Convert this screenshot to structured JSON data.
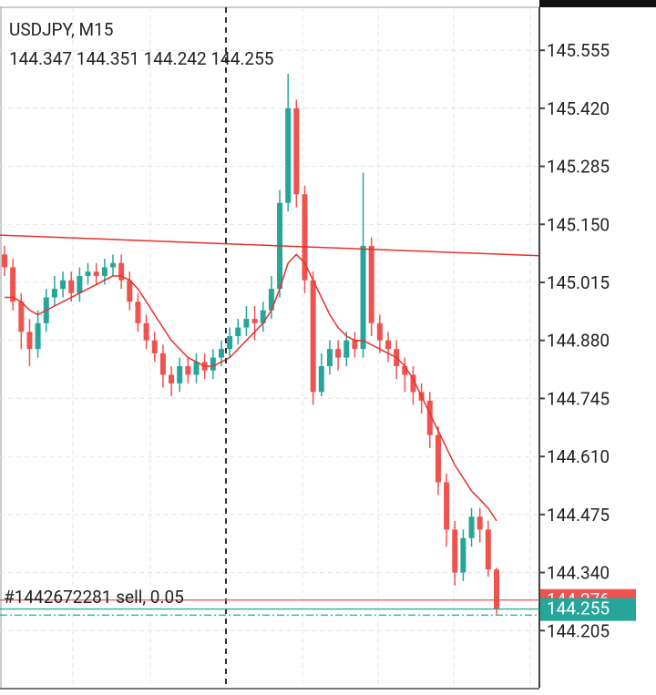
{
  "chart_data": {
    "type": "candlestick",
    "title": "USDJPY, M15",
    "subtitle": "144.347 144.351 144.242 144.255",
    "ylim": [
      144.072,
      145.655
    ],
    "yticks": [
      {
        "value": 145.555,
        "label": "145.555"
      },
      {
        "value": 145.42,
        "label": "145.420"
      },
      {
        "value": 145.285,
        "label": "145.285"
      },
      {
        "value": 145.15,
        "label": "145.150"
      },
      {
        "value": 145.015,
        "label": "145.015"
      },
      {
        "value": 144.88,
        "label": "144.880"
      },
      {
        "value": 144.745,
        "label": "144.745"
      },
      {
        "value": 144.61,
        "label": "144.610"
      },
      {
        "value": 144.475,
        "label": "144.475"
      },
      {
        "value": 144.34,
        "label": "144.340"
      },
      {
        "value": 144.205,
        "label": "144.205"
      }
    ],
    "up_color": "#26a69a",
    "down_color": "#ef5350",
    "open": [
      145.08,
      145.05,
      144.97,
      144.9,
      144.86,
      144.92,
      144.98,
      145.0,
      145.02,
      144.99,
      145.03,
      145.04,
      145.03,
      145.05,
      145.06,
      145.02,
      144.97,
      144.92,
      144.88,
      144.85,
      144.8,
      144.78,
      144.82,
      144.8,
      144.83,
      144.81,
      144.84,
      144.86,
      144.89,
      144.91,
      144.93,
      144.92,
      144.95,
      145.0,
      145.2,
      145.42,
      145.22,
      145.02,
      144.76,
      144.82,
      144.86,
      144.84,
      144.88,
      144.86,
      145.1,
      144.92,
      144.88,
      144.86,
      144.82,
      144.8,
      144.76,
      144.74,
      144.66,
      144.55,
      144.44,
      144.34,
      144.42,
      144.47,
      144.44,
      144.347
    ],
    "high": [
      145.1,
      145.07,
      144.99,
      144.93,
      144.95,
      145.0,
      145.03,
      145.04,
      145.04,
      145.05,
      145.06,
      145.06,
      145.07,
      145.08,
      145.08,
      145.04,
      144.99,
      144.94,
      144.9,
      144.87,
      144.82,
      144.84,
      144.84,
      144.85,
      144.85,
      144.86,
      144.88,
      144.91,
      144.93,
      144.96,
      144.96,
      144.97,
      145.03,
      145.23,
      145.5,
      145.44,
      145.24,
      145.04,
      144.85,
      144.88,
      144.88,
      144.9,
      144.9,
      145.27,
      145.12,
      144.94,
      144.9,
      144.88,
      144.84,
      144.82,
      144.78,
      144.76,
      144.68,
      144.57,
      144.46,
      144.44,
      144.49,
      144.49,
      144.46,
      144.351
    ],
    "low": [
      145.03,
      144.95,
      144.86,
      144.82,
      144.84,
      144.9,
      144.96,
      144.98,
      144.97,
      144.97,
      145.01,
      145.01,
      145.01,
      145.03,
      145.0,
      144.95,
      144.9,
      144.86,
      144.83,
      144.77,
      144.75,
      144.76,
      144.78,
      144.78,
      144.79,
      144.79,
      144.82,
      144.84,
      144.87,
      144.89,
      144.88,
      144.9,
      144.93,
      144.98,
      145.18,
      145.19,
      144.99,
      144.73,
      144.75,
      144.8,
      144.81,
      144.82,
      144.84,
      144.84,
      144.89,
      144.85,
      144.83,
      144.79,
      144.76,
      144.73,
      144.71,
      144.63,
      144.52,
      144.4,
      144.31,
      144.32,
      144.4,
      144.41,
      144.33,
      144.242
    ],
    "close": [
      145.05,
      144.97,
      144.9,
      144.86,
      144.92,
      144.98,
      145.0,
      145.02,
      144.99,
      145.03,
      145.04,
      145.03,
      145.05,
      145.06,
      145.02,
      144.97,
      144.92,
      144.88,
      144.85,
      144.8,
      144.78,
      144.82,
      144.8,
      144.83,
      144.81,
      144.84,
      144.86,
      144.89,
      144.91,
      144.93,
      144.92,
      144.95,
      145.0,
      145.2,
      145.42,
      145.22,
      145.02,
      144.76,
      144.82,
      144.86,
      144.84,
      144.88,
      144.86,
      145.1,
      144.92,
      144.88,
      144.86,
      144.82,
      144.8,
      144.76,
      144.74,
      144.66,
      144.55,
      144.44,
      144.34,
      144.42,
      144.47,
      144.44,
      144.347,
      144.255
    ],
    "moving_average": {
      "color": "#e8302a",
      "values": [
        144.98,
        144.98,
        144.97,
        144.95,
        144.94,
        144.95,
        144.96,
        144.97,
        144.98,
        144.99,
        145.0,
        145.01,
        145.02,
        145.03,
        145.03,
        145.02,
        145.0,
        144.97,
        144.94,
        144.91,
        144.88,
        144.86,
        144.84,
        144.83,
        144.82,
        144.82,
        144.83,
        144.84,
        144.86,
        144.88,
        144.9,
        144.92,
        144.95,
        145.0,
        145.06,
        145.08,
        145.06,
        145.02,
        144.98,
        144.94,
        144.91,
        144.89,
        144.88,
        144.88,
        144.87,
        144.86,
        144.85,
        144.84,
        144.82,
        144.79,
        144.75,
        144.71,
        144.67,
        144.63,
        144.59,
        144.56,
        144.53,
        144.51,
        144.49,
        144.46
      ]
    },
    "trendline": {
      "color": "#e8302a",
      "start": 145.125,
      "end": 145.077
    },
    "order_line": {
      "label": "#1442672281 sell, 0.05",
      "value": 144.276,
      "color": "#ef5350"
    },
    "bid": {
      "value": 144.255,
      "color": "#26a69a"
    },
    "ask": {
      "value": 144.241,
      "color": "#26a69a"
    }
  }
}
